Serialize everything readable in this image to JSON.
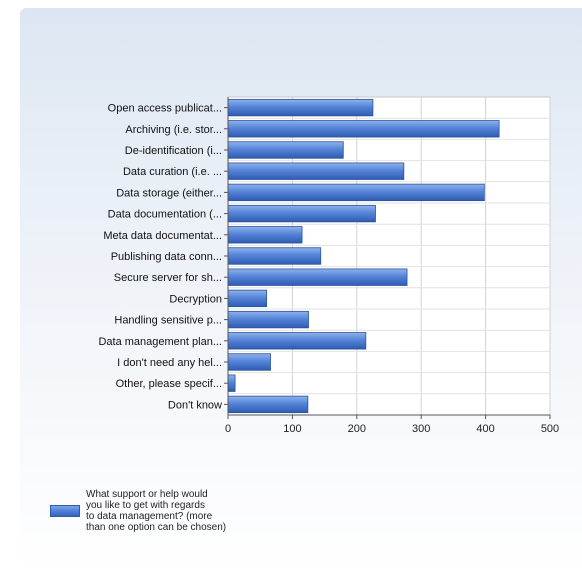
{
  "chart_data": {
    "type": "bar",
    "orientation": "horizontal",
    "categories": [
      "Open access publicat...",
      "Archiving (i.e. stor...",
      "De-identification (i...",
      "Data curation (i.e. ...",
      "Data storage (either...",
      "Data documentation (...",
      "Meta data documentat...",
      "Publishing data conn...",
      "Secure server for sh...",
      "Decryption",
      "Handling sensitive p...",
      "Data management plan...",
      "I don't need any hel...",
      "Other, please specif...",
      "Don't know"
    ],
    "series": [
      {
        "name": "What support or help would\nyou like to get with regards\nto data management? (more\nthan one option can be chosen)",
        "values": [
          225,
          421,
          179,
          273,
          398,
          229,
          115,
          144,
          278,
          60,
          125,
          214,
          66,
          11,
          124
        ]
      }
    ],
    "xlim": [
      0,
      500
    ],
    "xticks": [
      0,
      100,
      200,
      300,
      400,
      500
    ],
    "grid": true,
    "legend_position": "bottom-left",
    "bar_color": "#4a78cc"
  }
}
